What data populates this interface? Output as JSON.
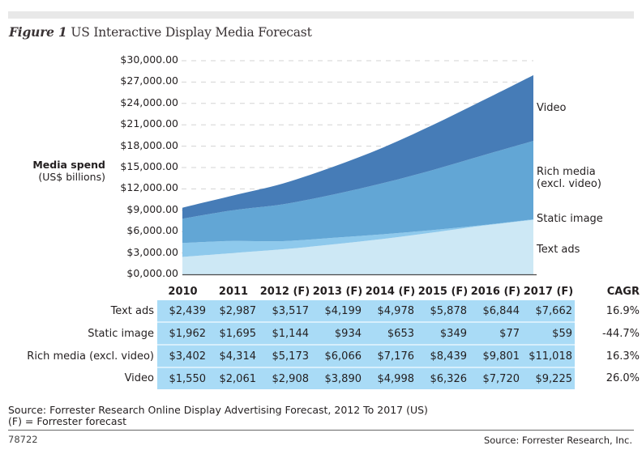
{
  "header": {
    "figure_label": "Figure 1",
    "title": "US Interactive Display Media Forecast"
  },
  "colors": {
    "text_ads": "#cde8f5",
    "static_image": "#8ec9ec",
    "rich_media": "#62a6d5",
    "video": "#467cb7",
    "table_fill": "#a9dbf6",
    "gridline": "#d3d3d3"
  },
  "chart_data": {
    "type": "area",
    "stacked": true,
    "title": "US Interactive Display Media Forecast",
    "ylabel_bold": "Media spend",
    "ylabel_sub": "(US$ billions)",
    "ylim": [
      0,
      30000
    ],
    "yticks": [
      "$0,000.00",
      "$3,000.00",
      "$6,000.00",
      "$9,000.00",
      "$12,000.00",
      "$15,000.00",
      "$18,000.00",
      "$21,000.00",
      "$24,000.00",
      "$27,000.00",
      "$30,000.00"
    ],
    "ytick_values": [
      0,
      3000,
      6000,
      9000,
      12000,
      15000,
      18000,
      21000,
      24000,
      27000,
      30000
    ],
    "grid": "dashed-horizontal",
    "x": [
      "2010",
      "2011",
      "2012 (F)",
      "2013 (F)",
      "2014 (F)",
      "2015 (F)",
      "2016 (F)",
      "2017 (F)"
    ],
    "series": [
      {
        "name": "Text ads",
        "values": [
          2439,
          2987,
          3517,
          4199,
          4978,
          5878,
          6844,
          7662
        ],
        "cagr": "16.9%"
      },
      {
        "name": "Static image",
        "values": [
          1962,
          1695,
          1144,
          934,
          653,
          349,
          77,
          59
        ],
        "cagr": "-44.7%"
      },
      {
        "name": "Rich media (excl. video)",
        "values": [
          3402,
          4314,
          5173,
          6066,
          7176,
          8439,
          9801,
          11018
        ],
        "cagr": "16.3%"
      },
      {
        "name": "Video",
        "values": [
          1550,
          2061,
          2908,
          3890,
          4998,
          6326,
          7720,
          9225
        ],
        "cagr": "26.0%"
      }
    ],
    "legend": [
      "Video",
      "Rich media\n(excl. video)",
      "Static image",
      "Text ads"
    ],
    "legend_placement": "right"
  },
  "table": {
    "headers": [
      "2010",
      "2011",
      "2012 (F)",
      "2013 (F)",
      "2014 (F)",
      "2015 (F)",
      "2016 (F)",
      "2017 (F)",
      "CAGR"
    ],
    "rows": [
      {
        "label": "Text ads",
        "cells": [
          "$2,439",
          "$2,987",
          "$3,517",
          "$4,199",
          "$4,978",
          "$5,878",
          "$6,844",
          "$7,662"
        ],
        "cagr": "16.9%"
      },
      {
        "label": "Static image",
        "cells": [
          "$1,962",
          "$1,695",
          "$1,144",
          "$934",
          "$653",
          "$349",
          "$77",
          "$59"
        ],
        "cagr": "-44.7%"
      },
      {
        "label": "Rich media (excl. video)",
        "cells": [
          "$3,402",
          "$4,314",
          "$5,173",
          "$6,066",
          "$7,176",
          "$8,439",
          "$9,801",
          "$11,018"
        ],
        "cagr": "16.3%"
      },
      {
        "label": "Video",
        "cells": [
          "$1,550",
          "$2,061",
          "$2,908",
          "$3,890",
          "$4,998",
          "$6,326",
          "$7,720",
          "$9,225"
        ],
        "cagr": "26.0%"
      }
    ]
  },
  "legend_labels": {
    "video": "Video",
    "rich_media_1": "Rich media",
    "rich_media_2": "(excl. video)",
    "static_image": "Static image",
    "text_ads": "Text ads"
  },
  "footer": {
    "source_line1": "Source: Forrester Research Online Display Advertising Forecast, 2012 To 2017 (US)",
    "source_line2": "(F) = Forrester forecast",
    "figure_code": "78722",
    "credit": "Source: Forrester Research, Inc."
  }
}
